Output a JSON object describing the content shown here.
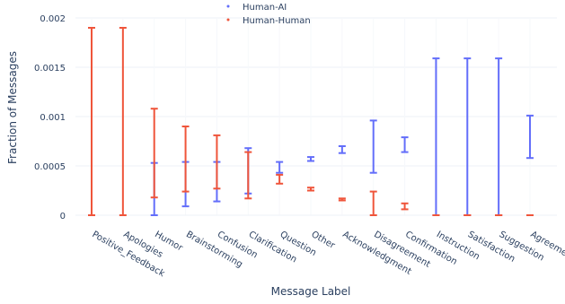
{
  "chart_data": {
    "type": "error_bar",
    "xlabel": "Message Label",
    "ylabel": "Fraction of Messages",
    "ylim": [
      0,
      0.002
    ],
    "yticks": [
      0,
      0.0005,
      0.001,
      0.0015,
      0.002
    ],
    "ytick_labels": [
      "0",
      "0.0005",
      "0.001",
      "0.0015",
      "0.002"
    ],
    "categories": [
      "Positive_Feedback",
      "Apologies",
      "Humor",
      "Brainstorming",
      "Confusion",
      "Clarification",
      "Question",
      "Other",
      "Acknowledgment",
      "Disagreement",
      "Confirmation",
      "Instruction",
      "Satisfaction",
      "Suggestion",
      "Agreement"
    ],
    "grid": true,
    "legend_position": "top-center",
    "series": [
      {
        "name": "Human-AI",
        "color": "#636efa",
        "intervals": [
          null,
          null,
          [
            0.0,
            0.00053
          ],
          [
            9e-05,
            0.00054
          ],
          [
            0.00014,
            0.00054
          ],
          [
            0.00022,
            0.00068
          ],
          [
            0.00043,
            0.00054
          ],
          [
            0.00055,
            0.00059
          ],
          [
            0.00063,
            0.0007
          ],
          [
            0.00043,
            0.00096
          ],
          [
            0.00064,
            0.00079
          ],
          [
            0.0,
            0.00159
          ],
          [
            0.0,
            0.00159
          ],
          [
            0.0,
            0.00159
          ],
          [
            0.00058,
            0.00101
          ]
        ]
      },
      {
        "name": "Human-Human",
        "color": "#ef553b",
        "intervals": [
          [
            0.0,
            0.0019
          ],
          [
            0.0,
            0.0019
          ],
          [
            0.00018,
            0.00108
          ],
          [
            0.00024,
            0.0009
          ],
          [
            0.00027,
            0.00081
          ],
          [
            0.00017,
            0.00064
          ],
          [
            0.00032,
            0.00041
          ],
          [
            0.00025,
            0.00028
          ],
          [
            0.00015,
            0.00017
          ],
          [
            0.0,
            0.00024
          ],
          [
            6e-05,
            0.00012
          ],
          [
            0.0,
            0.0
          ],
          [
            0.0,
            0.0
          ],
          [
            0.0,
            0.0
          ],
          [
            0.0,
            0.0
          ]
        ]
      }
    ]
  }
}
